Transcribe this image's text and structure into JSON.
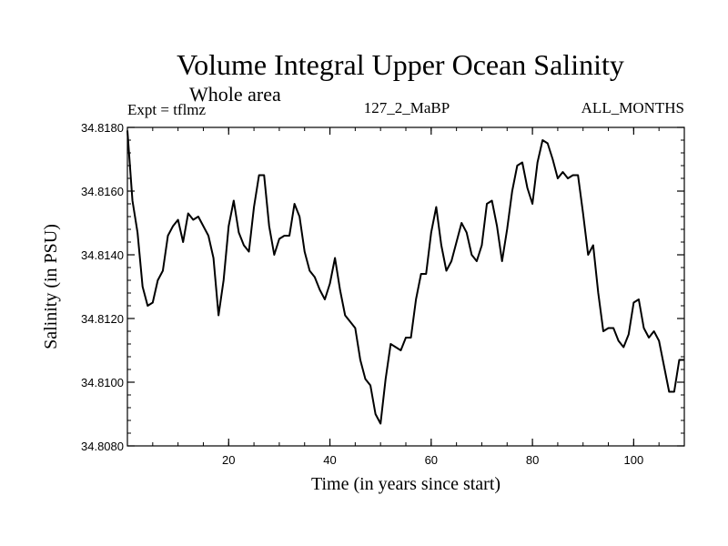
{
  "chart_data": {
    "type": "line",
    "title": "Volume Integral Upper Ocean Salinity",
    "subtitle": "Whole area",
    "left_label": "Expt = tflmz",
    "center_label": "127_2_MaBP",
    "right_label": "ALL_MONTHS",
    "xlabel": "Time (in years since start)",
    "ylabel": "Salinity (in PSU)",
    "xlim": [
      0,
      110
    ],
    "ylim": [
      34.808,
      34.818
    ],
    "xticks": [
      20,
      40,
      60,
      80,
      100
    ],
    "yticks": [
      34.808,
      34.81,
      34.812,
      34.814,
      34.816,
      34.818
    ],
    "ytick_labels": [
      "34.8080",
      "34.8100",
      "34.8120",
      "34.8140",
      "34.8160",
      "34.8180"
    ],
    "xtick_labels": [
      "20",
      "40",
      "60",
      "80",
      "100"
    ],
    "series": [
      {
        "name": "salinity",
        "color": "#000000",
        "x": [
          0,
          1,
          2,
          3,
          4,
          5,
          6,
          7,
          8,
          9,
          10,
          11,
          12,
          13,
          14,
          15,
          16,
          17,
          18,
          19,
          20,
          21,
          22,
          23,
          24,
          25,
          26,
          27,
          28,
          29,
          30,
          31,
          32,
          33,
          34,
          35,
          36,
          37,
          38,
          39,
          40,
          41,
          42,
          43,
          44,
          45,
          46,
          47,
          48,
          49,
          50,
          51,
          52,
          53,
          54,
          55,
          56,
          57,
          58,
          59,
          60,
          61,
          62,
          63,
          64,
          65,
          66,
          67,
          68,
          69,
          70,
          71,
          72,
          73,
          74,
          75,
          76,
          77,
          78,
          79,
          80,
          81,
          82,
          83,
          84,
          85,
          86,
          87,
          88,
          89,
          90,
          91,
          92,
          93,
          94,
          95,
          96,
          97,
          98,
          99,
          100,
          101,
          102,
          103,
          104,
          105,
          106,
          107,
          108,
          109,
          110
        ],
        "values": [
          34.8179,
          34.8157,
          34.8147,
          34.813,
          34.8124,
          34.8125,
          34.8132,
          34.8135,
          34.8146,
          34.8149,
          34.8151,
          34.8144,
          34.8153,
          34.8151,
          34.8152,
          34.8149,
          34.8146,
          34.8139,
          34.8121,
          34.8132,
          34.8149,
          34.8157,
          34.8147,
          34.8143,
          34.8141,
          34.8155,
          34.8165,
          34.8165,
          34.8149,
          34.814,
          34.8145,
          34.8146,
          34.8146,
          34.8156,
          34.8152,
          34.8141,
          34.8135,
          34.8133,
          34.8129,
          34.8126,
          34.8131,
          34.8139,
          34.8129,
          34.8121,
          34.8119,
          34.8117,
          34.8107,
          34.8101,
          34.8099,
          34.809,
          34.8087,
          34.8101,
          34.8112,
          34.8111,
          34.811,
          34.8114,
          34.8114,
          34.8126,
          34.8134,
          34.8134,
          34.8147,
          34.8155,
          34.8143,
          34.8135,
          34.8138,
          34.8144,
          34.815,
          34.8147,
          34.814,
          34.8138,
          34.8143,
          34.8156,
          34.8157,
          34.8149,
          34.8138,
          34.8148,
          34.816,
          34.8168,
          34.8169,
          34.8161,
          34.8156,
          34.8169,
          34.8176,
          34.8175,
          34.817,
          34.8164,
          34.8166,
          34.8164,
          34.8165,
          34.8165,
          34.8153,
          34.814,
          34.8143,
          34.8128,
          34.8116,
          34.8117,
          34.8117,
          34.8113,
          34.8111,
          34.8115,
          34.8125,
          34.8126,
          34.8117,
          34.8114,
          34.8116,
          34.8113,
          34.8105,
          34.8097,
          34.8097,
          34.8107,
          34.8107
        ]
      }
    ]
  }
}
